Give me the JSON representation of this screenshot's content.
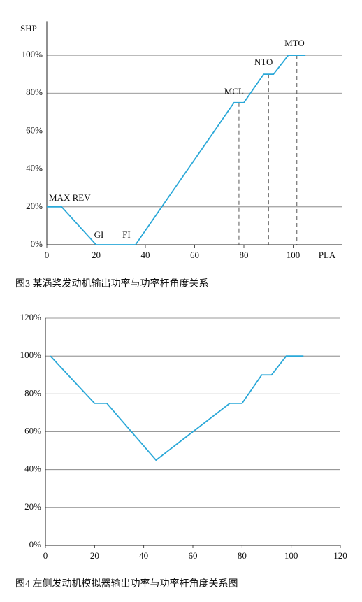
{
  "chart_data": [
    {
      "type": "line",
      "y_label": "SHP",
      "x_label": "PLA",
      "caption": "图3   某涡桨发动机输出功率与功率杆角度关系",
      "x": [
        0,
        6,
        20,
        36,
        76,
        80,
        88,
        92,
        98,
        105
      ],
      "values": [
        20,
        20,
        0,
        0,
        75,
        75,
        90,
        90,
        100,
        100
      ],
      "color": "#2aa8d8",
      "annotations": [
        "MAX REV",
        "GI",
        "FI",
        "MCL",
        "NTO",
        "MTO"
      ],
      "xlim": [
        0,
        120
      ],
      "xticks": [
        0,
        20,
        40,
        60,
        80,
        100
      ],
      "ylim": [
        0,
        115
      ],
      "yticks": [
        {
          "value": 0,
          "label": "0%"
        },
        {
          "value": 20,
          "label": "20%"
        },
        {
          "value": 40,
          "label": "40%"
        },
        {
          "value": 60,
          "label": "60%"
        },
        {
          "value": 80,
          "label": "80%"
        },
        {
          "value": 100,
          "label": "100%"
        }
      ],
      "grid": true
    },
    {
      "type": "line",
      "caption": "图4   左侧发动机模拟器输出功率与功率杆角度关系图",
      "x": [
        2,
        20,
        25,
        45,
        75,
        80,
        88,
        92,
        98,
        105
      ],
      "values": [
        100,
        75,
        75,
        45,
        75,
        75,
        90,
        90,
        100,
        100
      ],
      "color": "#2aa8d8",
      "xlim": [
        0,
        120
      ],
      "xticks": [
        0,
        20,
        40,
        60,
        80,
        100,
        120
      ],
      "ylim": [
        0,
        120
      ],
      "yticks": [
        {
          "value": 0,
          "label": "0%"
        },
        {
          "value": 20,
          "label": "20%"
        },
        {
          "value": 40,
          "label": "40%"
        },
        {
          "value": 60,
          "label": "60%"
        },
        {
          "value": 80,
          "label": "80%"
        },
        {
          "value": 100,
          "label": "100%"
        },
        {
          "value": 120,
          "label": "120%"
        }
      ],
      "grid": true
    }
  ]
}
